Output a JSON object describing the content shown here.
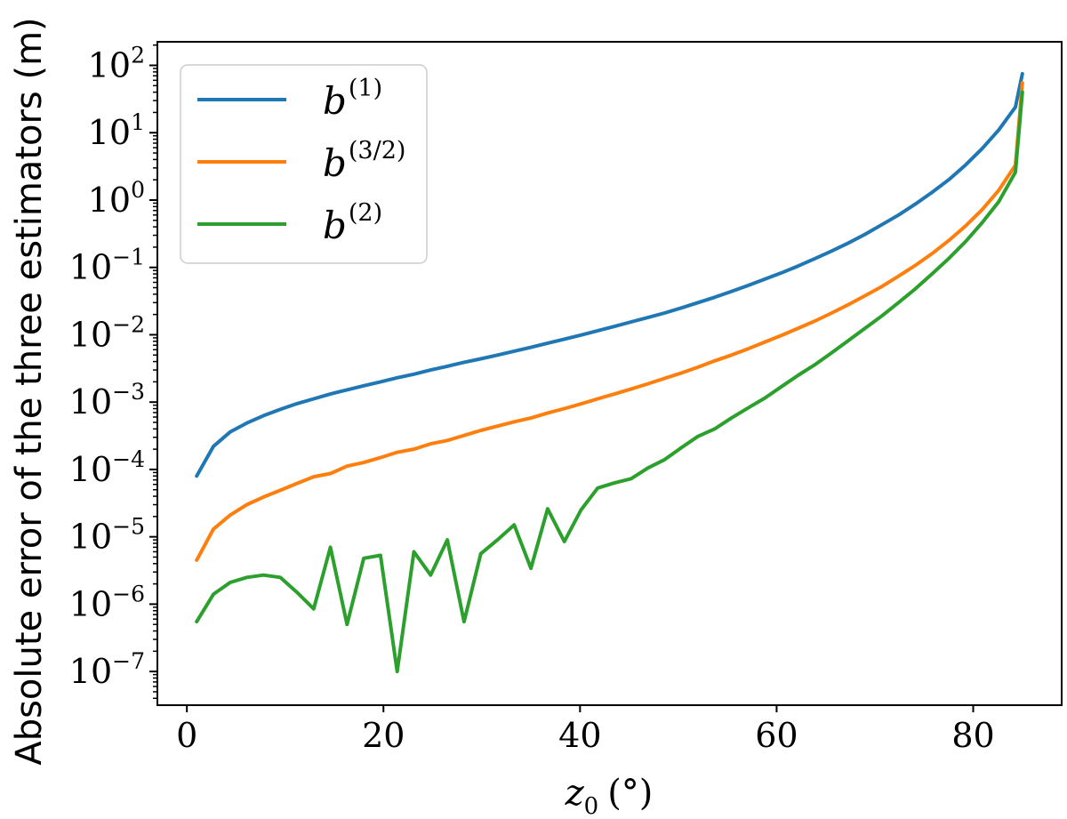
{
  "chart_data": {
    "type": "line",
    "x_label": {
      "var": "z",
      "sub": "0",
      "unit": "(°)"
    },
    "ylabel": "Absolute error of the three estimators (m)",
    "yscale": "log",
    "xlim": [
      -3,
      89
    ],
    "ylim_exp": [
      -7.5,
      2.35
    ],
    "x_ticks": [
      0,
      20,
      40,
      60,
      80
    ],
    "y_tick_exps": [
      -7,
      -6,
      -5,
      -4,
      -3,
      -2,
      -1,
      0,
      1,
      2
    ],
    "legend_position": "upper-left",
    "grid": false,
    "x": [
      1,
      2.7,
      4.4,
      6.1,
      7.8,
      9.5,
      11.2,
      12.9,
      14.6,
      16.3,
      18.0,
      19.7,
      21.4,
      23.1,
      24.8,
      26.5,
      28.2,
      29.9,
      31.6,
      33.3,
      35.0,
      36.7,
      38.4,
      40.1,
      41.8,
      43.5,
      45.2,
      46.9,
      48.6,
      50.3,
      52.0,
      53.7,
      55.4,
      57.1,
      58.8,
      60.5,
      62.2,
      63.9,
      65.6,
      67.3,
      69.0,
      70.7,
      72.4,
      74.1,
      75.8,
      77.5,
      79.2,
      80.9,
      82.6,
      84.3,
      85
    ],
    "series": [
      {
        "name": "b",
        "sup": "(1)",
        "color": "#1f77b4",
        "values": [
          8e-05,
          0.00022,
          0.00036,
          0.00049,
          0.00063,
          0.00078,
          0.00095,
          0.00112,
          0.00132,
          0.00152,
          0.00175,
          0.002,
          0.0023,
          0.0026,
          0.003,
          0.0034,
          0.0039,
          0.0044,
          0.005,
          0.0057,
          0.0065,
          0.0075,
          0.0086,
          0.0099,
          0.0115,
          0.0133,
          0.0155,
          0.018,
          0.021,
          0.025,
          0.03,
          0.036,
          0.044,
          0.054,
          0.067,
          0.083,
          0.105,
          0.135,
          0.175,
          0.23,
          0.31,
          0.43,
          0.6,
          0.87,
          1.3,
          2.0,
          3.3,
          5.8,
          11,
          24,
          75
        ]
      },
      {
        "name": "b",
        "sup": "(3/2)",
        "color": "#ff7f0e",
        "values": [
          4.5e-06,
          1.3e-05,
          2.1e-05,
          3e-05,
          3.9e-05,
          4.9e-05,
          6.2e-05,
          7.8e-05,
          8.7e-05,
          0.000112,
          0.000127,
          0.00015,
          0.00018,
          0.0002,
          0.00024,
          0.00027,
          0.00032,
          0.00038,
          0.00044,
          0.00051,
          0.00058,
          0.00069,
          0.0008,
          0.00094,
          0.00112,
          0.00132,
          0.00157,
          0.00187,
          0.00225,
          0.0027,
          0.0033,
          0.0041,
          0.005,
          0.0062,
          0.0078,
          0.0098,
          0.0125,
          0.016,
          0.021,
          0.028,
          0.038,
          0.052,
          0.074,
          0.107,
          0.16,
          0.25,
          0.41,
          0.72,
          1.4,
          3.3,
          55
        ]
      },
      {
        "name": "b",
        "sup": "(2)",
        "color": "#2ca02c",
        "values": [
          5.5e-07,
          1.4e-06,
          2.1e-06,
          2.5e-06,
          2.7e-06,
          2.5e-06,
          1.5e-06,
          8.5e-07,
          7e-06,
          5e-07,
          4.8e-06,
          5.3e-06,
          1e-07,
          6e-06,
          2.7e-06,
          9e-06,
          5.5e-07,
          5.6e-06,
          9e-06,
          1.5e-05,
          3.4e-06,
          2.6e-05,
          8.5e-06,
          2.5e-05,
          5.3e-05,
          6.3e-05,
          7.3e-05,
          0.000105,
          0.00014,
          0.00021,
          0.00031,
          0.0004,
          0.00058,
          0.00082,
          0.00115,
          0.0017,
          0.0025,
          0.0036,
          0.0054,
          0.0082,
          0.0125,
          0.019,
          0.03,
          0.048,
          0.08,
          0.135,
          0.24,
          0.46,
          0.95,
          2.6,
          40
        ]
      }
    ]
  }
}
